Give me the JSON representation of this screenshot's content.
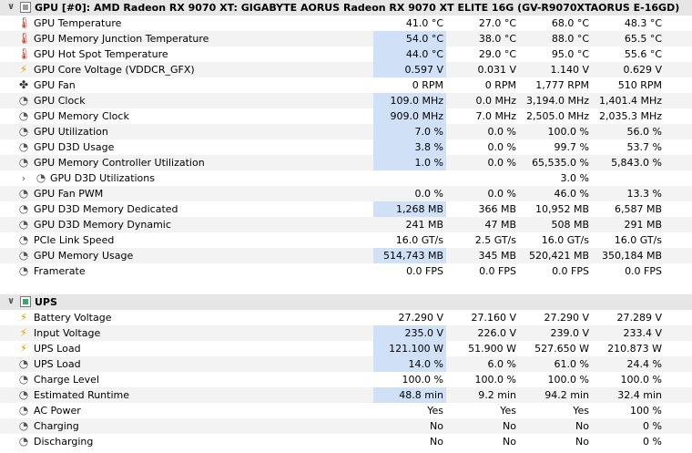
{
  "groups": [
    {
      "id": "gpu",
      "title": "GPU [#0]: AMD Radeon RX 9070 XT: GIGABYTE AORUS Radeon RX 9070 XT ELITE 16G (GV-R9070XTAORUS E-16GD)",
      "expand_glyph": "∨",
      "rows": [
        {
          "icon": "thermometer-icon",
          "label": "GPU Temperature",
          "cur": "41.0 °C",
          "min": "27.0 °C",
          "max": "68.0 °C",
          "avg": "48.3 °C",
          "hl": false
        },
        {
          "icon": "thermometer-icon",
          "label": "GPU Memory Junction Temperature",
          "cur": "54.0 °C",
          "min": "38.0 °C",
          "max": "88.0 °C",
          "avg": "65.5 °C",
          "hl": true
        },
        {
          "icon": "thermometer-icon",
          "label": "GPU Hot Spot Temperature",
          "cur": "44.0 °C",
          "min": "29.0 °C",
          "max": "95.0 °C",
          "avg": "55.6 °C",
          "hl": true
        },
        {
          "icon": "lightning-icon",
          "label": "GPU Core Voltage (VDDCR_GFX)",
          "cur": "0.597 V",
          "min": "0.031 V",
          "max": "1.140 V",
          "avg": "0.629 V",
          "hl": true
        },
        {
          "icon": "fan-icon",
          "label": "GPU Fan",
          "cur": "0 RPM",
          "min": "0 RPM",
          "max": "1,777 RPM",
          "avg": "510 RPM",
          "hl": false
        },
        {
          "icon": "gauge-icon",
          "label": "GPU Clock",
          "cur": "109.0 MHz",
          "min": "0.0 MHz",
          "max": "3,194.0 MHz",
          "avg": "1,401.4 MHz",
          "hl": true
        },
        {
          "icon": "gauge-icon",
          "label": "GPU Memory Clock",
          "cur": "909.0 MHz",
          "min": "7.0 MHz",
          "max": "2,505.0 MHz",
          "avg": "2,035.3 MHz",
          "hl": true
        },
        {
          "icon": "gauge-icon",
          "label": "GPU Utilization",
          "cur": "7.0 %",
          "min": "0.0 %",
          "max": "100.0 %",
          "avg": "56.0 %",
          "hl": true
        },
        {
          "icon": "gauge-icon",
          "label": "GPU D3D Usage",
          "cur": "3.8 %",
          "min": "0.0 %",
          "max": "99.7 %",
          "avg": "53.7 %",
          "hl": true
        },
        {
          "icon": "gauge-icon",
          "label": "GPU Memory Controller Utilization",
          "cur": "1.0 %",
          "min": "0.0 %",
          "max": "65,535.0 %",
          "avg": "5,843.0 %",
          "hl": true
        },
        {
          "icon": "gauge-icon",
          "label": "GPU D3D Utilizations",
          "cur": "",
          "min": "",
          "max": "3.0 %",
          "avg": "",
          "hl": false,
          "sub": true
        },
        {
          "icon": "gauge-icon",
          "label": "GPU Fan PWM",
          "cur": "0.0 %",
          "min": "0.0 %",
          "max": "46.0 %",
          "avg": "13.3 %",
          "hl": false
        },
        {
          "icon": "gauge-icon",
          "label": "GPU D3D Memory Dedicated",
          "cur": "1,268 MB",
          "min": "366 MB",
          "max": "10,952 MB",
          "avg": "6,587 MB",
          "hl": true
        },
        {
          "icon": "gauge-icon",
          "label": "GPU D3D Memory Dynamic",
          "cur": "241 MB",
          "min": "47 MB",
          "max": "508 MB",
          "avg": "291 MB",
          "hl": false
        },
        {
          "icon": "gauge-icon",
          "label": "PCIe Link Speed",
          "cur": "16.0 GT/s",
          "min": "2.5 GT/s",
          "max": "16.0 GT/s",
          "avg": "16.0 GT/s",
          "hl": false
        },
        {
          "icon": "gauge-icon",
          "label": "GPU Memory Usage",
          "cur": "514,743 MB",
          "min": "345 MB",
          "max": "520,421 MB",
          "avg": "350,184 MB",
          "hl": true
        },
        {
          "icon": "gauge-icon",
          "label": "Framerate",
          "cur": "0.0 FPS",
          "min": "0.0 FPS",
          "max": "0.0 FPS",
          "avg": "0.0 FPS",
          "hl": false
        }
      ]
    },
    {
      "id": "ups",
      "title": "UPS",
      "expand_glyph": "∨",
      "rows": [
        {
          "icon": "lightning-icon",
          "label": "Battery Voltage",
          "cur": "27.290 V",
          "min": "27.160 V",
          "max": "27.290 V",
          "avg": "27.289 V",
          "hl": false
        },
        {
          "icon": "lightning-icon",
          "label": "Input Voltage",
          "cur": "235.0 V",
          "min": "226.0 V",
          "max": "239.0 V",
          "avg": "233.4 V",
          "hl": true
        },
        {
          "icon": "lightning-icon",
          "label": "UPS Load",
          "cur": "121.100 W",
          "min": "51.900 W",
          "max": "527.650 W",
          "avg": "210.873 W",
          "hl": true
        },
        {
          "icon": "gauge-icon",
          "label": "UPS Load",
          "cur": "14.0 %",
          "min": "6.0 %",
          "max": "61.0 %",
          "avg": "24.4 %",
          "hl": true
        },
        {
          "icon": "gauge-icon",
          "label": "Charge Level",
          "cur": "100.0 %",
          "min": "100.0 %",
          "max": "100.0 %",
          "avg": "100.0 %",
          "hl": false
        },
        {
          "icon": "gauge-icon",
          "label": "Estimated Runtime",
          "cur": "48.8 min",
          "min": "9.2 min",
          "max": "94.2 min",
          "avg": "32.4 min",
          "hl": true
        },
        {
          "icon": "gauge-icon",
          "label": "AC Power",
          "cur": "Yes",
          "min": "Yes",
          "max": "Yes",
          "avg": "100 %",
          "hl": false
        },
        {
          "icon": "gauge-icon",
          "label": "Charging",
          "cur": "No",
          "min": "No",
          "max": "No",
          "avg": "0 %",
          "hl": false
        },
        {
          "icon": "gauge-icon",
          "label": "Discharging",
          "cur": "No",
          "min": "No",
          "max": "No",
          "avg": "0 %",
          "hl": false
        }
      ]
    }
  ],
  "icon_glyphs": {
    "thermometer-icon": "🌡",
    "lightning-icon": "⚡",
    "fan-icon": "✤",
    "gauge-icon": "◔"
  },
  "icon_classes": {
    "thermometer-icon": "therm",
    "lightning-icon": "bolt",
    "fan-icon": "fan",
    "gauge-icon": "gauge"
  },
  "sub_expand_glyph": "›",
  "colors": {
    "highlight": "#cfe0f7",
    "alt_row": "#f3f3f3",
    "group_bg": "#e6e6e6"
  }
}
